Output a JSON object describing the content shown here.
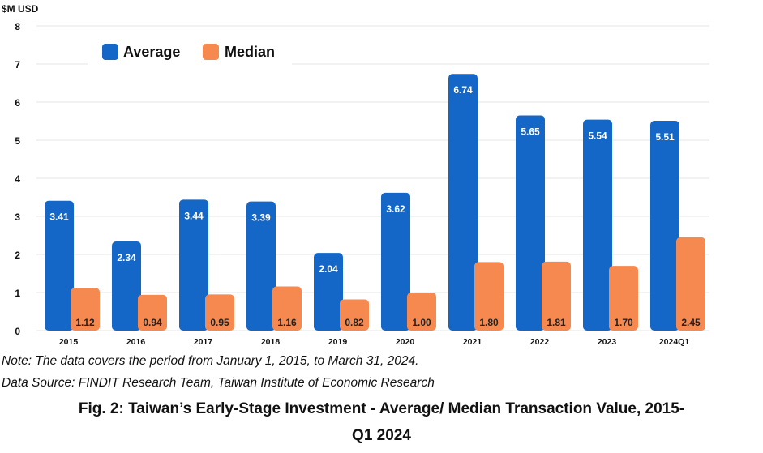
{
  "chart_data": {
    "type": "bar",
    "categories": [
      "2015",
      "2016",
      "2017",
      "2018",
      "2019",
      "2020",
      "2021",
      "2022",
      "2023",
      "2024Q1"
    ],
    "series": [
      {
        "name": "Average",
        "values": [
          3.41,
          2.34,
          3.44,
          3.39,
          2.04,
          3.62,
          6.74,
          5.65,
          5.54,
          5.51
        ],
        "labels": [
          "3.41",
          "2.34",
          "3.44",
          "3.39",
          "2.04",
          "3.62",
          "6.74",
          "5.65",
          "5.54",
          "5.51"
        ]
      },
      {
        "name": "Median",
        "values": [
          1.12,
          0.94,
          0.95,
          1.16,
          0.82,
          1.0,
          1.8,
          1.81,
          1.7,
          2.45
        ],
        "labels": [
          "1.12",
          "0.94",
          "0.95",
          "1.16",
          "0.82",
          "1.00",
          "1.80",
          "1.81",
          "1.70",
          "2.45"
        ]
      }
    ],
    "ylabel": "$M USD",
    "ylim": [
      0,
      8
    ],
    "yticks": [
      "0",
      "1",
      "2",
      "3",
      "4",
      "5",
      "6",
      "7",
      "8"
    ],
    "grid": true,
    "legend_position": "top-left",
    "colors": {
      "Average": "#1467c6",
      "Median": "#f5894f",
      "grid": "#e6e6e6"
    }
  },
  "notes": {
    "line1": "Note: The data covers the period from January 1, 2015, to March 31, 2024.",
    "line2": "Data Source: FINDIT Research Team, Taiwan Institute of Economic Research"
  },
  "caption": {
    "line1": "Fig. 2: Taiwan’s Early-Stage Investment - Average/ Median Transaction Value, 2015-",
    "line2": "Q1 2024"
  }
}
